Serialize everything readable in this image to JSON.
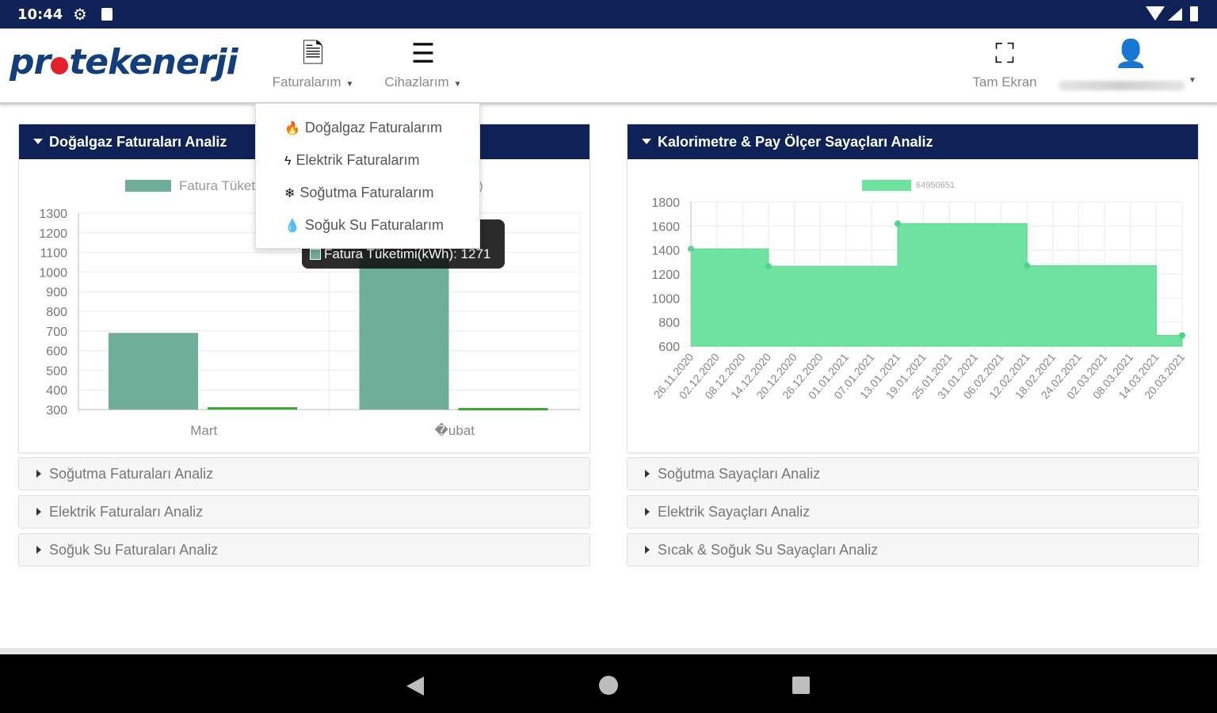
{
  "status_bar": {
    "time": "10:44"
  },
  "header": {
    "logo": {
      "part1": "pr",
      "part2": "tekenerji"
    },
    "nav": [
      {
        "label": "Faturalarım",
        "icon": "document-icon"
      },
      {
        "label": "Cihazlarım",
        "icon": "list-icon"
      }
    ],
    "fullscreen_label": "Tam Ekran"
  },
  "dropdown": {
    "items": [
      {
        "label": "Doğalgaz Faturalarım",
        "icon": "gas-icon"
      },
      {
        "label": "Elektrik Faturalarım",
        "icon": "bolt-icon"
      },
      {
        "label": "Soğutma Faturalarım",
        "icon": "snowflake-icon"
      },
      {
        "label": "Soğuk Su Faturalarım",
        "icon": "droplet-icon"
      }
    ]
  },
  "left_panel": {
    "title": "Doğalgaz Faturaları Analiz",
    "legend_left": "Fatura Tüket",
    "legend_right": ")",
    "tooltip": "Fatura Tüketimi(kWh): 1271"
  },
  "right_panel": {
    "title": "Kalorimetre & Pay Ölçer Sayaçları Analiz",
    "legend": "64950651"
  },
  "collapsed_left": [
    "Soğutma Faturaları Analiz",
    "Elektrik Faturaları Analiz",
    "Soğuk Su Faturaları Analiz"
  ],
  "collapsed_right": [
    "Soğutma Sayaçları Analiz",
    "Elektrik Sayaçları Analiz",
    "Sıcak & Soğuk Su Sayaçları Analiz"
  ],
  "colors": {
    "navy": "#0f2257",
    "bar_teal": "#6fae98",
    "bar_green": "#3aaa35",
    "area_green": "#6ee3a0",
    "point_green": "#4bd68a"
  },
  "chart_data": [
    {
      "type": "bar",
      "categories": [
        "Mart",
        "�ubat"
      ],
      "series": [
        {
          "name": "Fatura Tüket",
          "values": [
            690,
            1271
          ]
        },
        {
          "values": [
            312,
            308
          ]
        }
      ],
      "ylim": [
        300,
        1300
      ],
      "yticks": [
        1300,
        1200,
        1100,
        1000,
        900,
        800,
        700,
        600,
        500,
        400,
        300
      ]
    },
    {
      "type": "area",
      "x": [
        "26.11.2020",
        "02.12.2020",
        "08.12.2020",
        "14.12.2020",
        "20.12.2020",
        "26.12.2020",
        "01.01.2021",
        "07.01.2021",
        "13.01.2021",
        "19.01.2021",
        "25.01.2021",
        "31.01.2021",
        "06.02.2021",
        "12.02.2021",
        "18.02.2021",
        "24.02.2021",
        "02.03.2021",
        "08.03.2021",
        "14.03.2021",
        "20.03.2021"
      ],
      "series": [
        {
          "name": "64950651",
          "values": [
            1410,
            1410,
            1410,
            1265,
            1265,
            1265,
            1265,
            1265,
            1620,
            1620,
            1620,
            1620,
            1620,
            1270,
            1270,
            1270,
            1270,
            1270,
            690,
            690
          ]
        }
      ],
      "ylim": [
        600,
        1800
      ],
      "yticks": [
        1800,
        1600,
        1400,
        1200,
        1000,
        800,
        600
      ]
    }
  ]
}
